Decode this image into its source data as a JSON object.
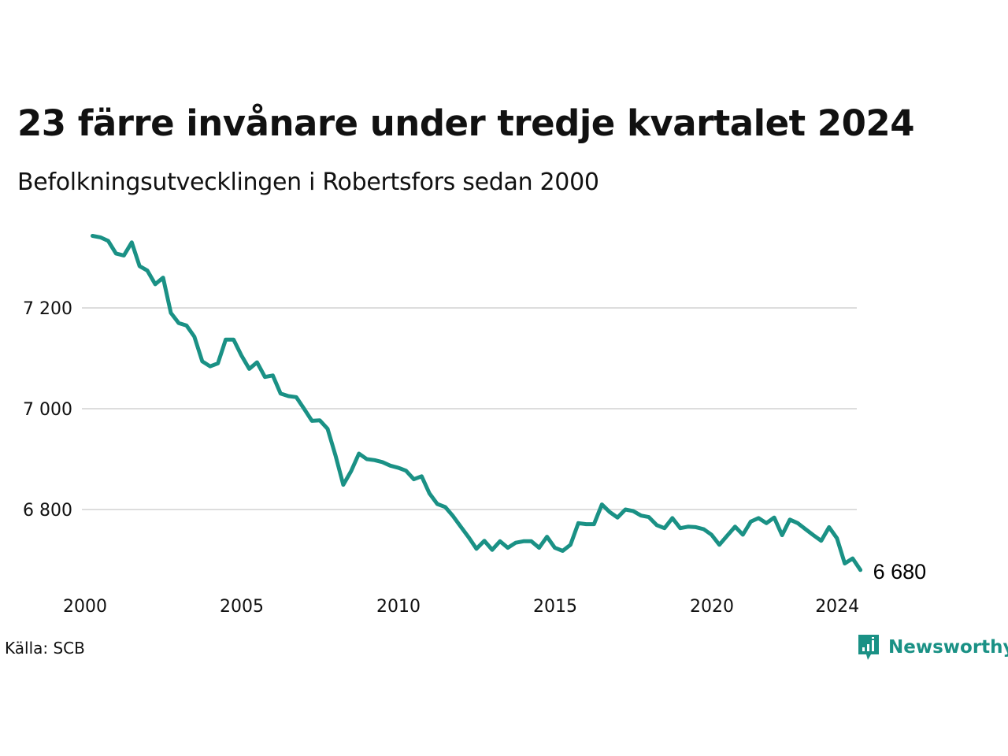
{
  "chart_data": {
    "type": "line",
    "title": "23 färre invånare under tredje kvartalet 2024",
    "subtitle": "Befolkningsutvecklingen i Robertsfors sedan 2000",
    "source": "Källa: SCB",
    "brand": "Newsworthy",
    "end_label": "6 680",
    "line_color": "#1a9185",
    "grid": true,
    "ylim": [
      6660,
      7360
    ],
    "y_ticks": [
      {
        "value": 6800,
        "label": "6 800"
      },
      {
        "value": 7000,
        "label": "7 000"
      },
      {
        "value": 7200,
        "label": "7 200"
      }
    ],
    "x_ticks": [
      {
        "value": 2000,
        "label": "2000"
      },
      {
        "value": 2005,
        "label": "2005"
      },
      {
        "value": 2010,
        "label": "2010"
      },
      {
        "value": 2015,
        "label": "2015"
      },
      {
        "value": 2020,
        "label": "2020"
      },
      {
        "value": 2024,
        "label": "2024"
      }
    ],
    "start": {
      "year": 2000,
      "quarter": 1
    },
    "series": [
      {
        "values": [
          7343,
          7340,
          7333,
          7308,
          7304,
          7330,
          7283,
          7274,
          7247,
          7260,
          7190,
          7170,
          7165,
          7143,
          7094,
          7084,
          7090,
          7137,
          7137,
          7106,
          7079,
          7092,
          7063,
          7066,
          7030,
          7025,
          7023,
          7000,
          6976,
          6977,
          6960,
          6908,
          6849,
          6876,
          6911,
          6900,
          6898,
          6894,
          6887,
          6883,
          6877,
          6860,
          6866,
          6832,
          6811,
          6805,
          6787,
          6766,
          6745,
          6722,
          6738,
          6720,
          6737,
          6724,
          6734,
          6737,
          6737,
          6724,
          6746,
          6724,
          6718,
          6730,
          6773,
          6771,
          6771,
          6810,
          6795,
          6784,
          6800,
          6797,
          6788,
          6785,
          6769,
          6763,
          6783,
          6763,
          6766,
          6765,
          6761,
          6750,
          6730,
          6748,
          6766,
          6750,
          6776,
          6783,
          6773,
          6784,
          6749,
          6780,
          6773,
          6761,
          6749,
          6738,
          6765,
          6743,
          6693,
          6703,
          6680
        ]
      }
    ]
  }
}
